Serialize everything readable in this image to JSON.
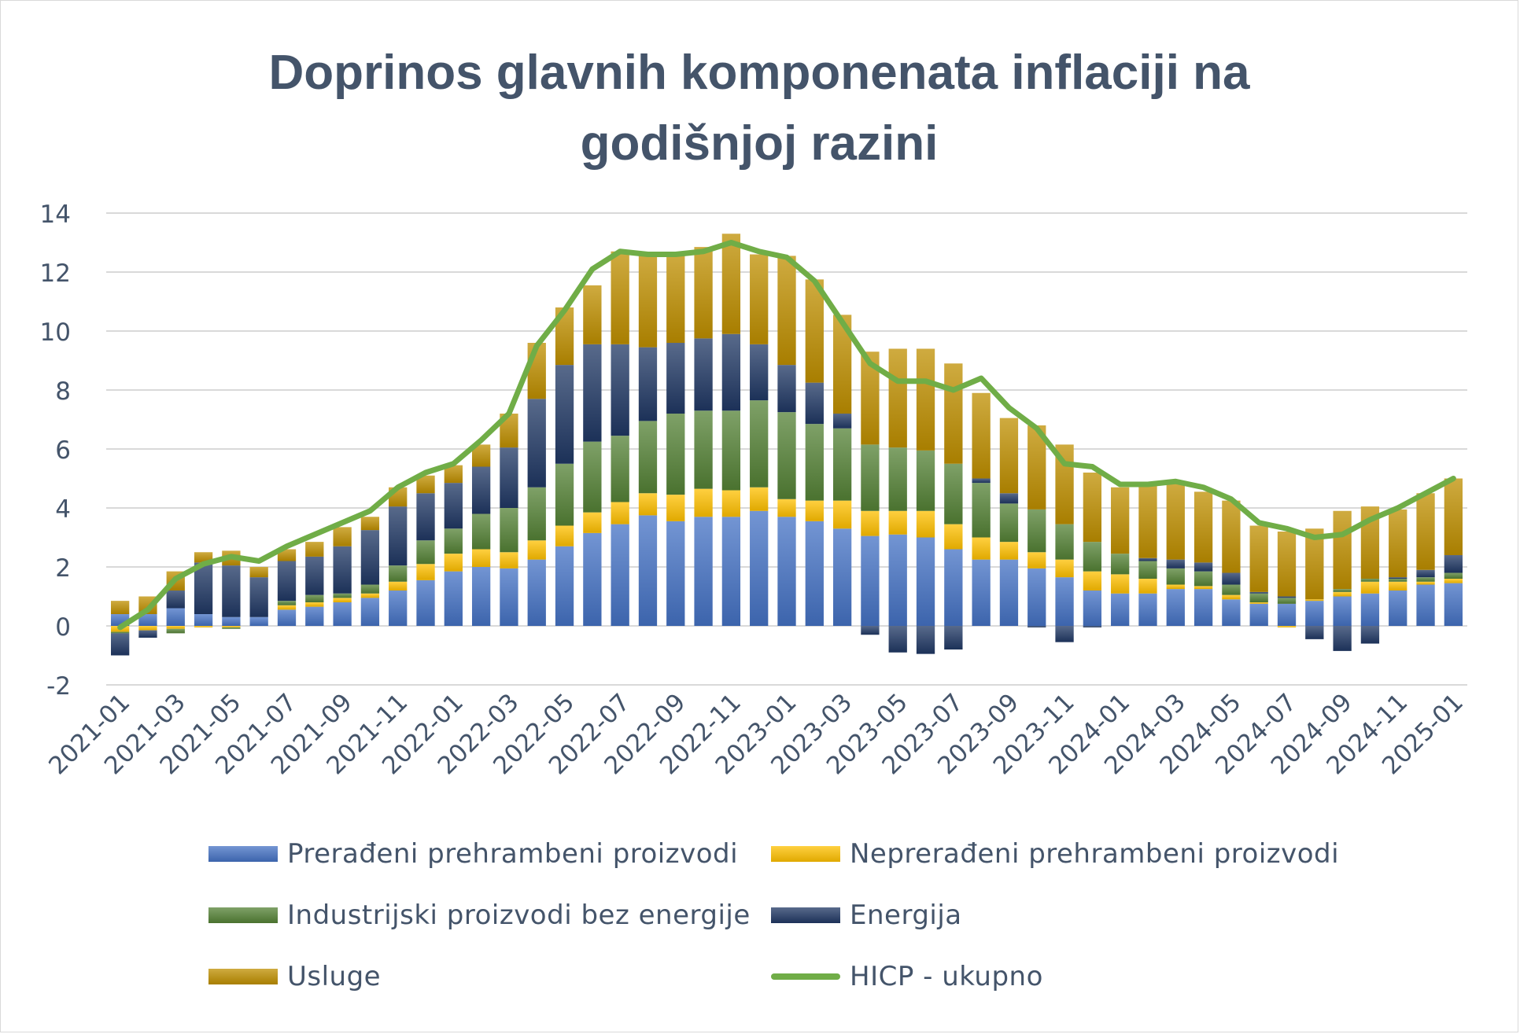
{
  "chart_data": {
    "type": "bar",
    "title_line1": "Doprinos glavnih komponenata inflaciji na",
    "title_line2": "godišnjoj razini",
    "ylim": [
      -2,
      14
    ],
    "yticks": [
      "14",
      "12",
      "10",
      "8",
      "6",
      "4",
      "2",
      "0",
      "-2"
    ],
    "grid": true,
    "legend_position": "bottom",
    "categories": [
      "2021-01",
      "2021-02",
      "2021-03",
      "2021-04",
      "2021-05",
      "2021-06",
      "2021-07",
      "2021-08",
      "2021-09",
      "2021-10",
      "2021-11",
      "2021-12",
      "2022-01",
      "2022-02",
      "2022-03",
      "2022-04",
      "2022-05",
      "2022-06",
      "2022-07",
      "2022-08",
      "2022-09",
      "2022-10",
      "2022-11",
      "2022-12",
      "2023-01",
      "2023-02",
      "2023-03",
      "2023-04",
      "2023-05",
      "2023-06",
      "2023-07",
      "2023-08",
      "2023-09",
      "2023-10",
      "2023-11",
      "2023-12",
      "2024-01",
      "2024-02",
      "2024-03",
      "2024-04",
      "2024-05",
      "2024-06",
      "2024-07",
      "2024-08",
      "2024-09",
      "2024-10",
      "2024-11",
      "2024-12",
      "2025-01"
    ],
    "x_tick_labels": [
      "2021-01",
      "2021-03",
      "2021-05",
      "2021-07",
      "2021-09",
      "2021-11",
      "2022-01",
      "2022-03",
      "2022-05",
      "2022-07",
      "2022-09",
      "2022-11",
      "2023-01",
      "2023-03",
      "2023-05",
      "2023-07",
      "2023-09",
      "2023-11",
      "2024-01",
      "2024-03",
      "2024-05",
      "2024-07",
      "2024-09",
      "2024-11",
      "2025-01"
    ],
    "series": [
      {
        "name": "Prerađeni prehrambeni proizvodi",
        "color": "#4472c4",
        "values": [
          0.4,
          0.4,
          0.6,
          0.4,
          0.3,
          0.3,
          0.55,
          0.65,
          0.8,
          0.95,
          1.2,
          1.55,
          1.85,
          2.0,
          1.95,
          2.25,
          2.7,
          3.15,
          3.45,
          3.75,
          3.55,
          3.7,
          3.7,
          3.9,
          3.7,
          3.55,
          3.3,
          3.05,
          3.1,
          3.0,
          2.6,
          2.25,
          2.25,
          1.95,
          1.65,
          1.2,
          1.1,
          1.1,
          1.25,
          1.25,
          0.9,
          0.75,
          0.75,
          0.85,
          1.0,
          1.1,
          1.2,
          1.4,
          1.45
        ]
      },
      {
        "name": "Neprerađeni prehrambeni proizvodi",
        "color": "#ffc000",
        "values": [
          -0.2,
          -0.15,
          -0.1,
          -0.05,
          -0.05,
          0.0,
          0.15,
          0.15,
          0.15,
          0.15,
          0.3,
          0.55,
          0.6,
          0.6,
          0.55,
          0.65,
          0.7,
          0.7,
          0.75,
          0.75,
          0.9,
          0.95,
          0.9,
          0.8,
          0.6,
          0.7,
          0.95,
          0.85,
          0.8,
          0.9,
          0.85,
          0.75,
          0.6,
          0.55,
          0.6,
          0.65,
          0.65,
          0.5,
          0.15,
          0.1,
          0.15,
          0.05,
          -0.05,
          0.05,
          0.15,
          0.4,
          0.3,
          0.1,
          0.15
        ]
      },
      {
        "name": "Industrijski proizvodi bez energije",
        "color": "#548235",
        "values": [
          -0.05,
          0.0,
          -0.15,
          0.0,
          -0.05,
          0.0,
          0.15,
          0.25,
          0.15,
          0.3,
          0.55,
          0.8,
          0.85,
          1.2,
          1.5,
          1.8,
          2.1,
          2.4,
          2.25,
          2.45,
          2.75,
          2.65,
          2.7,
          2.95,
          2.95,
          2.6,
          2.45,
          2.25,
          2.15,
          2.05,
          2.05,
          1.85,
          1.3,
          1.45,
          1.2,
          1.0,
          0.7,
          0.6,
          0.55,
          0.5,
          0.35,
          0.3,
          0.2,
          0.0,
          0.1,
          0.1,
          0.1,
          0.15,
          0.2
        ]
      },
      {
        "name": "Energija",
        "color": "#203864",
        "values": [
          -0.75,
          -0.25,
          0.6,
          1.75,
          1.75,
          1.35,
          1.35,
          1.3,
          1.6,
          1.85,
          2.0,
          1.6,
          1.55,
          1.6,
          2.05,
          3.0,
          3.35,
          3.3,
          3.1,
          2.5,
          2.4,
          2.45,
          2.6,
          1.9,
          1.6,
          1.4,
          0.5,
          -0.3,
          -0.9,
          -0.95,
          -0.8,
          0.15,
          0.35,
          -0.05,
          -0.55,
          -0.05,
          0.0,
          0.1,
          0.3,
          0.3,
          0.4,
          0.05,
          0.05,
          -0.45,
          -0.85,
          -0.6,
          0.05,
          0.25,
          0.6
        ]
      },
      {
        "name": "Usluge",
        "color": "#bf8f00",
        "values": [
          0.45,
          0.6,
          0.65,
          0.35,
          0.5,
          0.35,
          0.4,
          0.5,
          0.65,
          0.45,
          0.65,
          0.6,
          0.6,
          0.75,
          1.15,
          1.9,
          1.95,
          2.0,
          3.15,
          3.2,
          3.0,
          3.1,
          3.4,
          3.05,
          3.7,
          3.5,
          3.35,
          3.15,
          3.35,
          3.45,
          3.4,
          2.9,
          2.55,
          2.85,
          2.7,
          2.35,
          2.25,
          2.5,
          2.6,
          2.4,
          2.45,
          2.25,
          2.2,
          2.4,
          2.65,
          2.45,
          2.3,
          2.6,
          2.6
        ]
      },
      {
        "name": "HICP - ukupno",
        "color": "#70ad47",
        "type": "line",
        "values": [
          -0.05,
          0.55,
          1.6,
          2.1,
          2.35,
          2.2,
          2.7,
          3.1,
          3.5,
          3.9,
          4.7,
          5.2,
          5.5,
          6.3,
          7.2,
          9.5,
          10.7,
          12.1,
          12.7,
          12.6,
          12.6,
          12.7,
          13.0,
          12.7,
          12.5,
          11.7,
          10.3,
          8.9,
          8.3,
          8.3,
          8.0,
          8.4,
          7.4,
          6.7,
          5.5,
          5.4,
          4.8,
          4.8,
          4.9,
          4.7,
          4.3,
          3.5,
          3.3,
          3.0,
          3.1,
          3.6,
          4.0,
          4.5,
          5.0
        ]
      }
    ]
  }
}
